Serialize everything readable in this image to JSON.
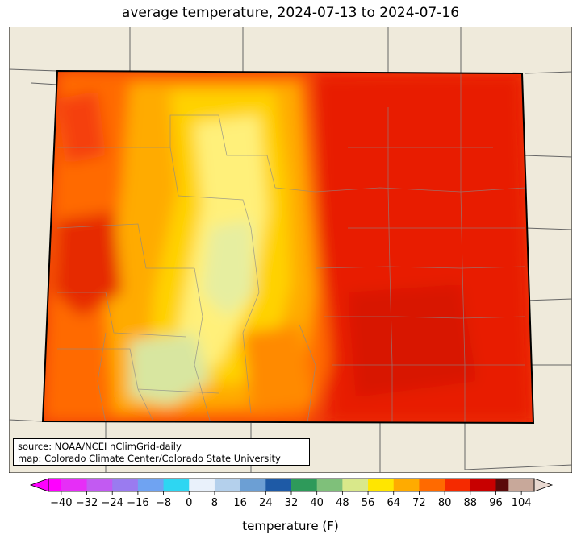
{
  "title": "average temperature, 2024-07-13 to 2024-07-16",
  "source_lines": [
    "source: NOAA/NCEI nClimGrid-daily",
    "map: Colorado Climate Center/Colorado State University"
  ],
  "colorbar": {
    "label": "temperature (F)",
    "min": -44,
    "max": 108,
    "ticks": [
      "−40",
      "−32",
      "−24",
      "−16",
      "−8",
      "0",
      "8",
      "16",
      "24",
      "32",
      "40",
      "48",
      "56",
      "64",
      "72",
      "80",
      "88",
      "96",
      "104"
    ],
    "tick_values": [
      -40,
      -32,
      -24,
      -16,
      -8,
      0,
      8,
      16,
      24,
      32,
      40,
      48,
      56,
      64,
      72,
      80,
      88,
      96,
      104
    ],
    "bands": [
      {
        "from": -44,
        "to": -40,
        "color": "#ff00ff"
      },
      {
        "from": -40,
        "to": -32,
        "color": "#e62ef7"
      },
      {
        "from": -32,
        "to": -24,
        "color": "#c25af2"
      },
      {
        "from": -24,
        "to": -16,
        "color": "#9a7bf0"
      },
      {
        "from": -16,
        "to": -8,
        "color": "#6fa3f2"
      },
      {
        "from": -8,
        "to": 0,
        "color": "#2ed6f2"
      },
      {
        "from": 0,
        "to": 8,
        "color": "#e9f1fb"
      },
      {
        "from": 8,
        "to": 16,
        "color": "#b4d0ec"
      },
      {
        "from": 16,
        "to": 24,
        "color": "#6c9fd4"
      },
      {
        "from": 24,
        "to": 32,
        "color": "#1e5aa6"
      },
      {
        "from": 32,
        "to": 40,
        "color": "#2e9a5a"
      },
      {
        "from": 40,
        "to": 48,
        "color": "#7fc07a"
      },
      {
        "from": 48,
        "to": 56,
        "color": "#d9e88a"
      },
      {
        "from": 56,
        "to": 64,
        "color": "#ffe600"
      },
      {
        "from": 64,
        "to": 72,
        "color": "#ffab00"
      },
      {
        "from": 72,
        "to": 80,
        "color": "#ff6a00"
      },
      {
        "from": 80,
        "to": 88,
        "color": "#f52a00"
      },
      {
        "from": 88,
        "to": 96,
        "color": "#c80000"
      },
      {
        "from": 96,
        "to": 100,
        "color": "#5a0a0a"
      },
      {
        "from": 100,
        "to": 108,
        "color": "#c8a89a"
      }
    ]
  },
  "colors": {
    "background_land": "#efeadb",
    "state_fill_hot": "#f03a0a",
    "state_fill_warm": "#ff7a00",
    "state_fill_mild": "#ffc300",
    "state_fill_cool": "#ffee66",
    "state_fill_coolest": "#d8e6a0",
    "border": "#000000",
    "county_lines": "#888888"
  }
}
